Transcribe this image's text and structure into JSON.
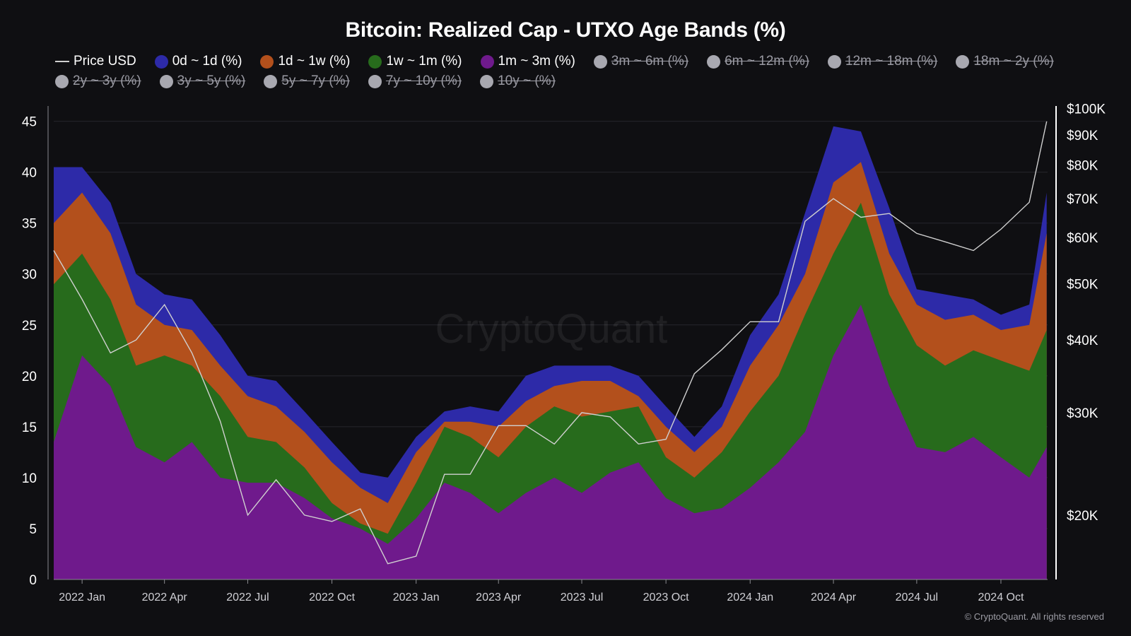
{
  "title": "Bitcoin: Realized Cap - UTXO Age Bands (%)",
  "watermark": "CryptoQuant",
  "copyright": "© CryptoQuant. All rights reserved",
  "legend": [
    {
      "label": "Price USD",
      "color": "#d0d0d0",
      "kind": "line",
      "hidden": false
    },
    {
      "label": "0d ~ 1d (%)",
      "color": "#2d2aa8",
      "kind": "dot",
      "hidden": false
    },
    {
      "label": "1d ~ 1w (%)",
      "color": "#b3501c",
      "kind": "dot",
      "hidden": false
    },
    {
      "label": "1w ~ 1m (%)",
      "color": "#276b1c",
      "kind": "dot",
      "hidden": false
    },
    {
      "label": "1m ~ 3m (%)",
      "color": "#6f1a8c",
      "kind": "dot",
      "hidden": false
    },
    {
      "label": "3m ~ 6m (%)",
      "color": "#a8a8b0",
      "kind": "dot",
      "hidden": true
    },
    {
      "label": "6m ~ 12m (%)",
      "color": "#a8a8b0",
      "kind": "dot",
      "hidden": true
    },
    {
      "label": "12m ~ 18m (%)",
      "color": "#a8a8b0",
      "kind": "dot",
      "hidden": true
    },
    {
      "label": "18m ~ 2y (%)",
      "color": "#a8a8b0",
      "kind": "dot",
      "hidden": true
    },
    {
      "label": "2y ~ 3y (%)",
      "color": "#a8a8b0",
      "kind": "dot",
      "hidden": true
    },
    {
      "label": "3y ~ 5y (%)",
      "color": "#a8a8b0",
      "kind": "dot",
      "hidden": true
    },
    {
      "label": "5y ~ 7y (%)",
      "color": "#a8a8b0",
      "kind": "dot",
      "hidden": true
    },
    {
      "label": "7y ~ 10y (%)",
      "color": "#a8a8b0",
      "kind": "dot",
      "hidden": true
    },
    {
      "label": "10y ~ (%)",
      "color": "#a8a8b0",
      "kind": "dot",
      "hidden": true
    }
  ],
  "chart_data": {
    "type": "area",
    "stacked": true,
    "x_ticks": [
      "2022 Jan",
      "2022 Apr",
      "2022 Jul",
      "2022 Oct",
      "2023 Jan",
      "2023 Apr",
      "2023 Jul",
      "2023 Oct",
      "2024 Jan",
      "2024 Apr",
      "2024 Jul",
      "2024 Oct"
    ],
    "y_left_ticks": [
      "0",
      "5",
      "10",
      "15",
      "20",
      "25",
      "30",
      "35",
      "40",
      "45"
    ],
    "y_left_range": [
      0,
      46.5
    ],
    "y_right_ticks": [
      "$20K",
      "$30K",
      "$40K",
      "$50K",
      "$60K",
      "$70K",
      "$80K",
      "$90K",
      "$100K"
    ],
    "y_right_values": [
      20000,
      30000,
      40000,
      50000,
      60000,
      70000,
      80000,
      90000,
      100000
    ],
    "y_right_scale": "log",
    "y_right_range": [
      15500,
      101000
    ],
    "grid": "horizontal",
    "x": [
      "2021-12-01",
      "2022-01-01",
      "2022-02-01",
      "2022-03-01",
      "2022-04-01",
      "2022-05-01",
      "2022-06-01",
      "2022-07-01",
      "2022-08-01",
      "2022-09-01",
      "2022-10-01",
      "2022-11-01",
      "2022-12-01",
      "2023-01-01",
      "2023-02-01",
      "2023-03-01",
      "2023-04-01",
      "2023-05-01",
      "2023-06-01",
      "2023-07-01",
      "2023-08-01",
      "2023-09-01",
      "2023-10-01",
      "2023-11-01",
      "2023-12-01",
      "2024-01-01",
      "2024-02-01",
      "2024-03-01",
      "2024-04-01",
      "2024-05-01",
      "2024-06-01",
      "2024-07-01",
      "2024-08-01",
      "2024-09-01",
      "2024-10-01",
      "2024-11-01",
      "2024-11-20"
    ],
    "series": [
      {
        "name": "1m ~ 3m (%)",
        "color": "#6f1a8c",
        "values": [
          13.5,
          22,
          19,
          13,
          11.5,
          13.5,
          10,
          9.5,
          9.5,
          8,
          6,
          5,
          3.5,
          6,
          9.5,
          8.5,
          6.5,
          8.5,
          10,
          8.5,
          10.5,
          11.5,
          8,
          6.5,
          7,
          9,
          11.5,
          14.5,
          22,
          27,
          19,
          13,
          12.5,
          14,
          12,
          10,
          13
        ]
      },
      {
        "name": "1w ~ 1m (%)",
        "color": "#276b1c",
        "values": [
          29,
          32,
          27.5,
          21,
          22,
          21,
          18,
          14,
          13.5,
          11,
          7.5,
          5.5,
          4.5,
          9.5,
          15,
          14,
          12,
          15,
          17,
          16,
          16.5,
          17,
          12,
          10,
          12.5,
          16.5,
          20,
          26,
          32,
          37,
          28,
          23,
          21,
          22.5,
          21.5,
          20.5,
          24.5
        ]
      },
      {
        "name": "1d ~ 1w (%)",
        "color": "#b3501c",
        "values": [
          35,
          38,
          34,
          27,
          25,
          24.5,
          21,
          18,
          17,
          14.5,
          11.5,
          9,
          7.5,
          12.5,
          15.5,
          15.5,
          15,
          17.5,
          19,
          19.5,
          19.5,
          18,
          15,
          12.5,
          15,
          21,
          25,
          30,
          39,
          41,
          32,
          27,
          25.5,
          26,
          24.5,
          25,
          34
        ]
      },
      {
        "name": "0d ~ 1d (%)",
        "color": "#2d2aa8",
        "values": [
          40.5,
          40.5,
          37,
          30,
          28,
          27.5,
          24,
          20,
          19.5,
          16.5,
          13.5,
          10.5,
          10,
          14,
          16.5,
          17,
          16.5,
          20,
          21,
          21,
          21,
          20,
          17,
          14,
          17,
          24,
          28,
          36,
          44.5,
          44,
          36.5,
          28.5,
          28,
          27.5,
          26,
          27,
          38
        ]
      }
    ],
    "price": {
      "name": "Price USD",
      "color": "#d0d0d0",
      "x": [
        "2021-12-01",
        "2022-01-01",
        "2022-02-01",
        "2022-03-01",
        "2022-04-01",
        "2022-05-01",
        "2022-06-01",
        "2022-07-01",
        "2022-08-01",
        "2022-09-01",
        "2022-10-01",
        "2022-11-01",
        "2022-12-01",
        "2023-01-01",
        "2023-02-01",
        "2023-03-01",
        "2023-04-01",
        "2023-05-01",
        "2023-06-01",
        "2023-07-01",
        "2023-08-01",
        "2023-09-01",
        "2023-10-01",
        "2023-11-01",
        "2023-12-01",
        "2024-01-01",
        "2024-02-01",
        "2024-03-01",
        "2024-04-01",
        "2024-05-01",
        "2024-06-01",
        "2024-07-01",
        "2024-08-01",
        "2024-09-01",
        "2024-10-01",
        "2024-11-01",
        "2024-11-20"
      ],
      "values": [
        57000,
        47000,
        38000,
        40000,
        46000,
        38000,
        29000,
        20000,
        23000,
        20000,
        19500,
        20500,
        16500,
        17000,
        23500,
        23500,
        28500,
        28500,
        26500,
        30000,
        29500,
        26500,
        27000,
        35000,
        38500,
        43000,
        43000,
        64000,
        70000,
        65000,
        66000,
        61000,
        59000,
        57000,
        62000,
        69000,
        95000
      ]
    }
  }
}
